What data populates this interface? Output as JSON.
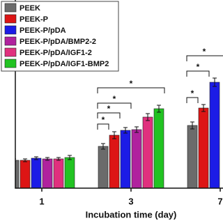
{
  "chart_data": {
    "type": "bar",
    "x_label": "Incubation time (day)",
    "categories": [
      "1",
      "3",
      "7"
    ],
    "series": [
      {
        "name": "PEEK",
        "color": "#6b6b6b",
        "values": [
          0.4,
          0.6,
          0.9
        ],
        "errors": [
          0.02,
          0.04,
          0.05
        ]
      },
      {
        "name": "PEEK-P",
        "color": "#dd1515",
        "values": [
          0.4,
          0.76,
          1.15
        ],
        "errors": [
          0.02,
          0.05,
          0.05
        ]
      },
      {
        "name": "PEEK-P/pDA",
        "color": "#1c1ce6",
        "values": [
          0.43,
          0.83,
          1.52
        ],
        "errors": [
          0.02,
          0.04,
          0.06
        ]
      },
      {
        "name": "PEEK-P/pDA/BMP2-2",
        "color": "#b0229e",
        "values": [
          0.42,
          0.84,
          null
        ],
        "errors": [
          0.02,
          0.04,
          null
        ]
      },
      {
        "name": "PEEK-P/pDA/IGF1-2",
        "color": "#e0307e",
        "values": [
          0.42,
          1.02,
          null
        ],
        "errors": [
          0.02,
          0.05,
          null
        ]
      },
      {
        "name": "PEEK-P/pDA/IGF1-BMP2",
        "color": "#22c322",
        "values": [
          0.44,
          1.14,
          null
        ],
        "errors": [
          0.03,
          0.05,
          null
        ]
      }
    ],
    "ylim": [
      0,
      2.7
    ],
    "annotations": [
      "*",
      "*",
      "*",
      "*",
      "*",
      "*",
      "*"
    ]
  }
}
